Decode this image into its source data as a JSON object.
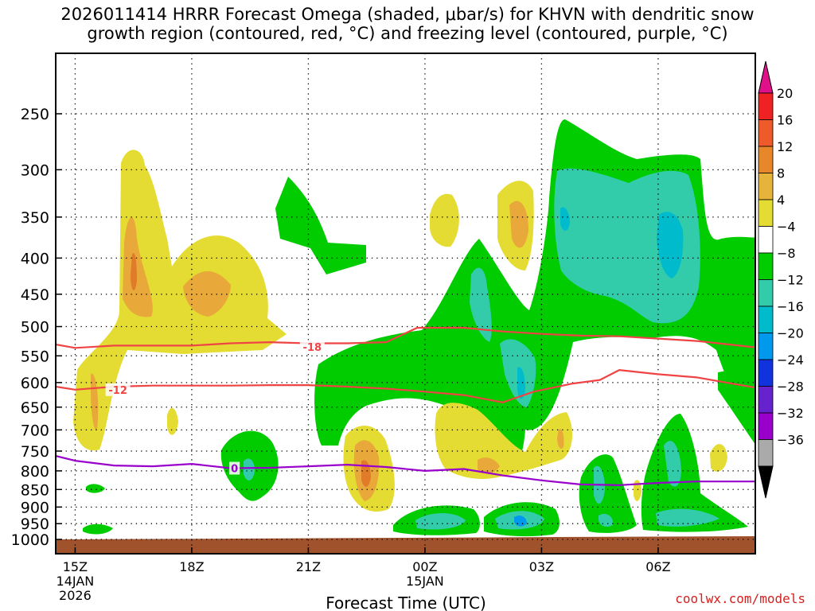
{
  "title": "2026011414 HRRR Forecast Omega (shaded, μbar/s) for KHVN with dendritic snow\ngrowth region (contoured, red, °C) and freezing level (contoured, purple, °C)",
  "credit": "coolwx.com/models",
  "colors": {
    "rise_weak": "#00cc00",
    "rise_mod": "#33ccaa",
    "rise_strong": "#00bbcc",
    "rise_vstrong": "#0099ee",
    "sink_weak": "#e5dc33",
    "sink_mod": "#e8a83a",
    "sink_strong": "#e07b2a",
    "dgz_line": "#ee4444",
    "freezing_line": "#9900cc",
    "ground": "#a0522d"
  },
  "chart_data": {
    "type": "heatmap",
    "title": "2026011414 HRRR Forecast Omega (shaded, μbar/s) for KHVN with dendritic snow growth region (contoured, red, °C) and freezing level (contoured, purple, °C)",
    "xlabel": "Forecast Time (UTC)",
    "ylabel": "",
    "x_range_hours": [
      14.5,
      32.5
    ],
    "y_range_hpa": [
      1000,
      200
    ],
    "y_scale": "log-pressure",
    "grid": true,
    "x_ticks": [
      {
        "hour": 15,
        "label": "15Z",
        "sub": [
          "14JAN",
          "2026"
        ]
      },
      {
        "hour": 18,
        "label": "18Z",
        "sub": []
      },
      {
        "hour": 21,
        "label": "21Z",
        "sub": []
      },
      {
        "hour": 24,
        "label": "00Z",
        "sub": [
          "15JAN"
        ]
      },
      {
        "hour": 27,
        "label": "03Z",
        "sub": []
      },
      {
        "hour": 30,
        "label": "06Z",
        "sub": []
      }
    ],
    "y_ticks": [
      250,
      300,
      350,
      400,
      450,
      500,
      550,
      600,
      650,
      700,
      750,
      800,
      850,
      900,
      950,
      1000
    ],
    "colorbar": {
      "labels": [
        "20",
        "16",
        "12",
        "8",
        "4",
        "−4",
        "−8",
        "−12",
        "−16",
        "−20",
        "−24",
        "−28",
        "−32",
        "−36"
      ],
      "colors": [
        "#ee2222",
        "#ee5a2a",
        "#e8862a",
        "#e6b43a",
        "#e5dc33",
        "#ffffff",
        "#00cc00",
        "#33ccaa",
        "#00bbcc",
        "#0099ee",
        "#1133dd",
        "#6622cc",
        "#9900cc",
        "#aaaaaa"
      ],
      "top_arrow_color": "#e0108a",
      "bottom_arrow_color": "#000000"
    },
    "contours": [
      {
        "label": "-18",
        "color": "#ee4444",
        "label_at": {
          "hour": 21.1,
          "hpa": 534
        },
        "points": [
          [
            14.5,
            530
          ],
          [
            15,
            536
          ],
          [
            16,
            532
          ],
          [
            17,
            532
          ],
          [
            18,
            532
          ],
          [
            19,
            528
          ],
          [
            20,
            526
          ],
          [
            21,
            528
          ],
          [
            22,
            528
          ],
          [
            23,
            526
          ],
          [
            23.8,
            502
          ],
          [
            25,
            502
          ],
          [
            26,
            508
          ],
          [
            27,
            512
          ],
          [
            28,
            515
          ],
          [
            29,
            516
          ],
          [
            30,
            520
          ],
          [
            31,
            524
          ],
          [
            32.5,
            535
          ]
        ]
      },
      {
        "label": "-12",
        "color": "#ee4444",
        "label_at": {
          "hour": 16.1,
          "hpa": 614
        },
        "points": [
          [
            14.5,
            608
          ],
          [
            15,
            614
          ],
          [
            16,
            608
          ],
          [
            17,
            606
          ],
          [
            18,
            606
          ],
          [
            19,
            606
          ],
          [
            20,
            605
          ],
          [
            21,
            605
          ],
          [
            22,
            608
          ],
          [
            23,
            612
          ],
          [
            24,
            618
          ],
          [
            25,
            625
          ],
          [
            26,
            640
          ],
          [
            26.8,
            618
          ],
          [
            27.8,
            602
          ],
          [
            28.5,
            595
          ],
          [
            29,
            576
          ],
          [
            30,
            584
          ],
          [
            31,
            590
          ],
          [
            32.5,
            610
          ]
        ]
      },
      {
        "label": "0",
        "color": "#9900cc",
        "label_at": {
          "hour": 19.1,
          "hpa": 793
        },
        "points": [
          [
            14.5,
            762
          ],
          [
            15,
            774
          ],
          [
            16,
            786
          ],
          [
            17,
            788
          ],
          [
            18,
            782
          ],
          [
            19,
            793
          ],
          [
            20,
            792
          ],
          [
            21,
            788
          ],
          [
            22,
            784
          ],
          [
            23,
            790
          ],
          [
            24,
            800
          ],
          [
            25,
            795
          ],
          [
            26,
            812
          ],
          [
            27,
            825
          ],
          [
            28,
            836
          ],
          [
            29,
            838
          ],
          [
            30,
            832
          ],
          [
            31,
            828
          ],
          [
            32.5,
            828
          ]
        ]
      }
    ]
  }
}
